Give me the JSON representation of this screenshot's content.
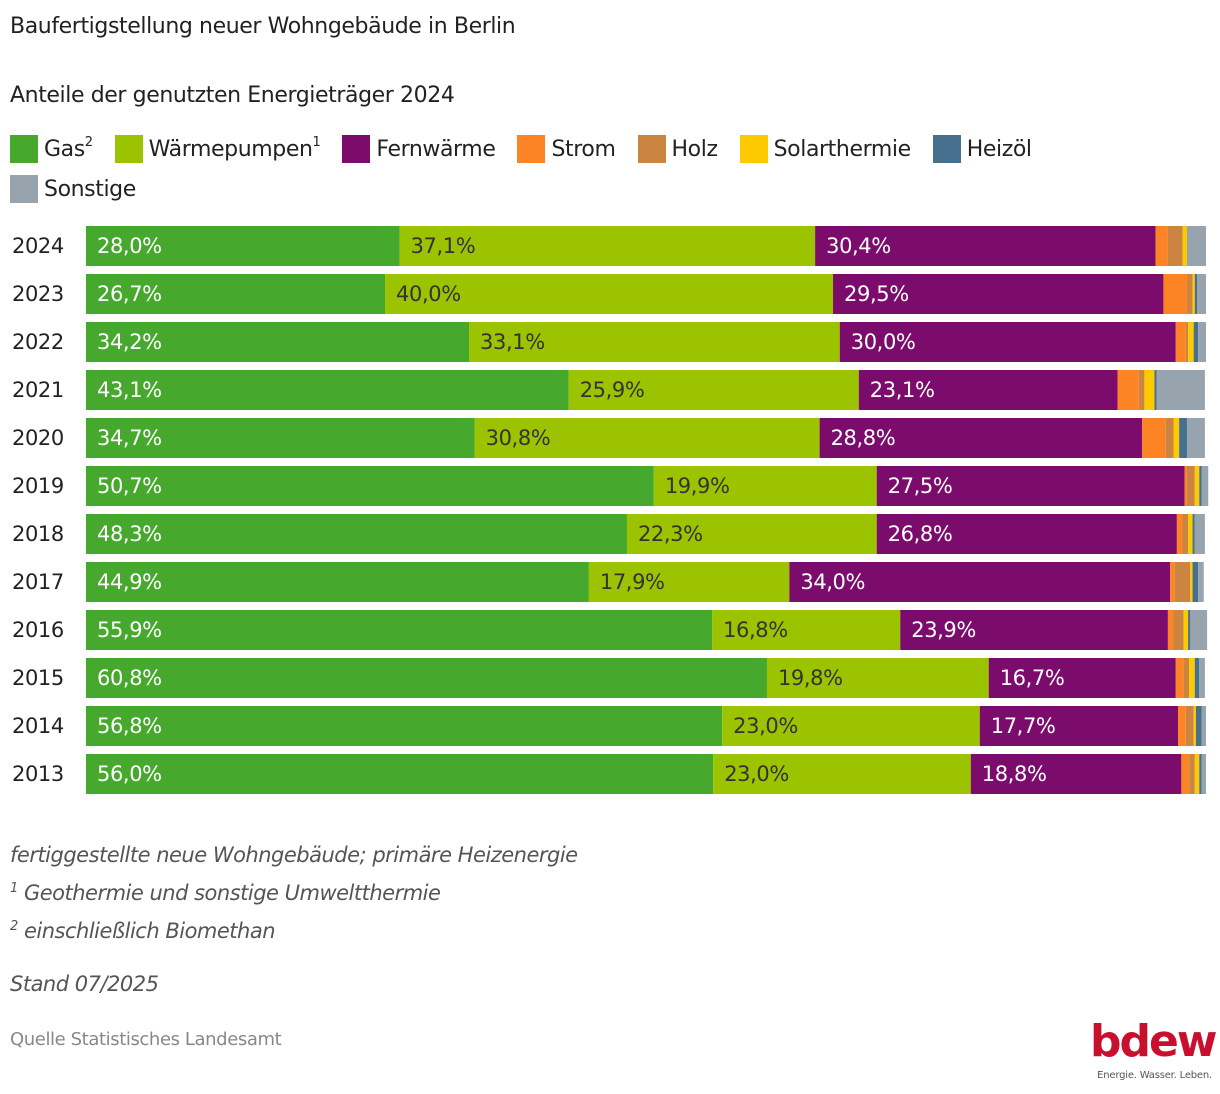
{
  "header": {
    "title": "Baufertigstellung neuer Wohngebäude in Berlin",
    "subtitle": "Anteile der genutzten Energieträger 2024"
  },
  "legend": [
    {
      "key": "gas",
      "label": "Gas",
      "sup": "2",
      "color": "#46a82d"
    },
    {
      "key": "waermepumpen",
      "label": "Wärmepumpen",
      "sup": "1",
      "color": "#9bc300"
    },
    {
      "key": "fernwaerme",
      "label": "Fernwärme",
      "sup": "",
      "color": "#7b0c6c"
    },
    {
      "key": "strom",
      "label": "Strom",
      "sup": "",
      "color": "#fd8425"
    },
    {
      "key": "holz",
      "label": "Holz",
      "sup": "",
      "color": "#cc8540"
    },
    {
      "key": "solarthermie",
      "label": "Solarthermie",
      "sup": "",
      "color": "#fdc900"
    },
    {
      "key": "heizoel",
      "label": "Heizöl",
      "sup": "",
      "color": "#46708e"
    },
    {
      "key": "sonstige",
      "label": "Sonstige",
      "sup": "",
      "color": "#97a4ae"
    }
  ],
  "chart_data": {
    "type": "bar",
    "orientation": "horizontal",
    "stacked": true,
    "title": "Baufertigstellung neuer Wohngebäude in Berlin",
    "subtitle": "Anteile der genutzten Energieträger 2024",
    "xlabel": "",
    "ylabel": "",
    "xlim": [
      0,
      100
    ],
    "unit": "%",
    "grid": false,
    "legend_position": "top",
    "categories": [
      "2024",
      "2023",
      "2022",
      "2021",
      "2020",
      "2019",
      "2018",
      "2017",
      "2016",
      "2015",
      "2014",
      "2013"
    ],
    "series": [
      {
        "name": "Gas²",
        "color": "#46a82d",
        "label_color": "#ffffff",
        "labeled": true,
        "values": [
          28.0,
          26.7,
          34.2,
          43.1,
          34.7,
          50.7,
          48.3,
          44.9,
          55.9,
          60.8,
          56.8,
          56.0
        ]
      },
      {
        "name": "Wärmepumpen¹",
        "color": "#9bc300",
        "label_color": "#333333",
        "labeled": true,
        "values": [
          37.1,
          40.0,
          33.1,
          25.9,
          30.8,
          19.9,
          22.3,
          17.9,
          16.8,
          19.8,
          23.0,
          23.0
        ]
      },
      {
        "name": "Fernwärme",
        "color": "#7b0c6c",
        "label_color": "#ffffff",
        "labeled": true,
        "values": [
          30.4,
          29.5,
          30.0,
          23.1,
          28.8,
          27.5,
          26.8,
          34.0,
          23.9,
          16.7,
          17.7,
          18.8
        ]
      },
      {
        "name": "Strom",
        "color": "#fd8425",
        "labeled": false,
        "values": [
          1.1,
          2.1,
          0.9,
          1.9,
          2.1,
          0.2,
          0.5,
          0.4,
          0.5,
          0.7,
          0.7,
          0.7
        ]
      },
      {
        "name": "Holz",
        "color": "#cc8540",
        "labeled": false,
        "values": [
          1.3,
          0.5,
          0.2,
          0.5,
          0.7,
          0.7,
          0.5,
          1.4,
          0.9,
          0.5,
          0.7,
          0.5
        ]
      },
      {
        "name": "Solarthermie",
        "color": "#fdc900",
        "labeled": false,
        "values": [
          0.4,
          0.2,
          0.5,
          0.9,
          0.5,
          0.4,
          0.4,
          0.2,
          0.4,
          0.5,
          0.2,
          0.4
        ]
      },
      {
        "name": "Heizöl",
        "color": "#46708e",
        "labeled": false,
        "values": [
          0.0,
          0.2,
          0.4,
          0.2,
          0.7,
          0.2,
          0.2,
          0.5,
          0.2,
          0.4,
          0.5,
          0.2
        ]
      },
      {
        "name": "Sonstige",
        "color": "#97a4ae",
        "labeled": false,
        "values": [
          1.7,
          0.8,
          0.7,
          4.3,
          1.6,
          0.6,
          0.9,
          0.5,
          1.5,
          0.5,
          0.4,
          0.4
        ]
      }
    ],
    "data_labels": [
      [
        "28,0%",
        "37,1%",
        "30,4%"
      ],
      [
        "26,7%",
        "40,0%",
        "29,5%"
      ],
      [
        "34,2%",
        "33,1%",
        "30,0%"
      ],
      [
        "43,1%",
        "25,9%",
        "23,1%"
      ],
      [
        "34,7%",
        "30,8%",
        "28,8%"
      ],
      [
        "50,7%",
        "19,9%",
        "27,5%"
      ],
      [
        "48,3%",
        "22,3%",
        "26,8%"
      ],
      [
        "44,9%",
        "17,9%",
        "34,0%"
      ],
      [
        "55,9%",
        "16,8%",
        "23,9%"
      ],
      [
        "60,8%",
        "19,8%",
        "16,7%"
      ],
      [
        "56,8%",
        "23,0%",
        "17,7%"
      ],
      [
        "56,0%",
        "23,0%",
        "18,8%"
      ]
    ]
  },
  "notes": {
    "line1": "fertiggestellte neue Wohngebäude; primäre Heizenergie",
    "line2_sup": "1",
    "line2": " Geothermie und sonstige Umweltthermie",
    "line3_sup": "2",
    "line3": " einschließlich Biomethan"
  },
  "stand": "Stand 07/2025",
  "source": "Quelle Statistisches Landesamt",
  "logo": {
    "wordmark": "bdew",
    "tagline": "Energie. Wasser. Leben.",
    "color": "#c8102e"
  }
}
